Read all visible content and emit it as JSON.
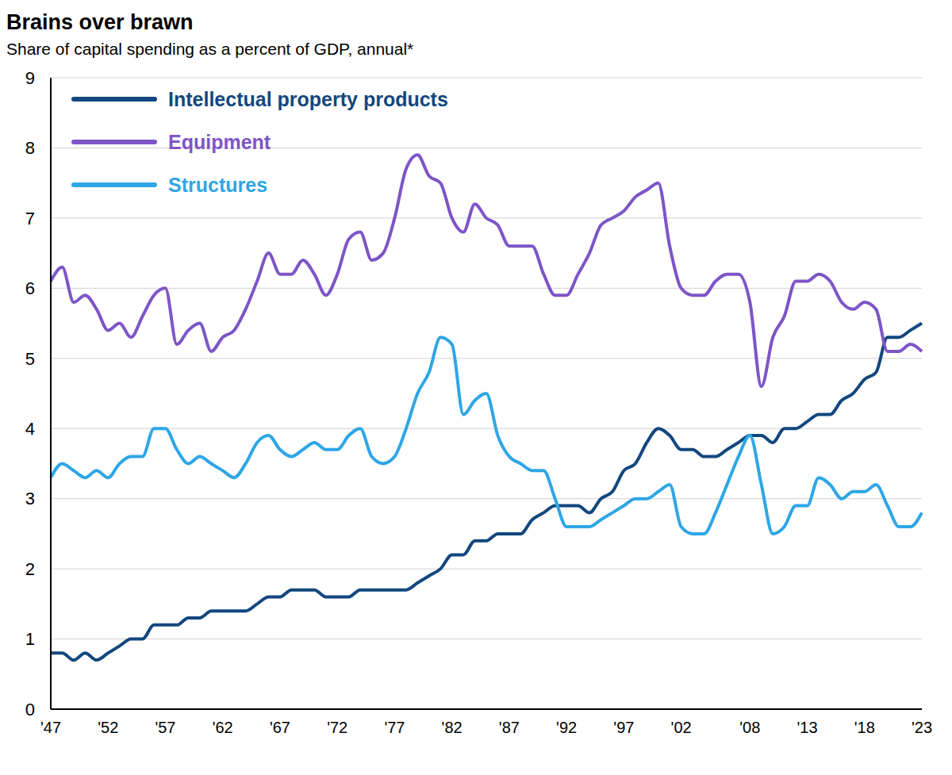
{
  "chart_data": {
    "type": "line",
    "title": "Brains over brawn",
    "subtitle": "Share of capital spending as a percent of GDP, annual*",
    "categories": [
      "'47",
      null,
      null,
      null,
      null,
      "'52",
      null,
      null,
      null,
      null,
      "'57",
      null,
      null,
      null,
      null,
      "'62",
      null,
      null,
      null,
      null,
      "'67",
      null,
      null,
      null,
      null,
      "'72",
      null,
      null,
      null,
      null,
      "'77",
      null,
      null,
      null,
      null,
      "'82",
      null,
      null,
      null,
      null,
      "'87",
      null,
      null,
      null,
      null,
      "'92",
      null,
      null,
      null,
      null,
      "'97",
      null,
      null,
      null,
      null,
      "'02",
      null,
      null,
      null,
      null,
      null,
      "'08",
      null,
      null,
      null,
      null,
      "'13",
      null,
      null,
      null,
      null,
      "'18",
      null,
      null,
      null,
      null,
      "'23"
    ],
    "series": [
      {
        "name": "Intellectual property products",
        "color": "#12477e",
        "values": [
          0.8,
          0.8,
          0.7,
          0.8,
          0.7,
          0.8,
          0.9,
          1.0,
          1.0,
          1.2,
          1.2,
          1.2,
          1.3,
          1.3,
          1.4,
          1.4,
          1.4,
          1.4,
          1.5,
          1.6,
          1.6,
          1.7,
          1.7,
          1.7,
          1.6,
          1.6,
          1.6,
          1.7,
          1.7,
          1.7,
          1.7,
          1.7,
          1.8,
          1.9,
          2.0,
          2.2,
          2.2,
          2.4,
          2.4,
          2.5,
          2.5,
          2.5,
          2.7,
          2.8,
          2.9,
          2.9,
          2.9,
          2.8,
          3.0,
          3.1,
          3.4,
          3.5,
          3.8,
          4.0,
          3.9,
          3.7,
          3.7,
          3.6,
          3.6,
          3.7,
          3.8,
          3.9,
          3.9,
          3.8,
          4.0,
          4.0,
          4.1,
          4.2,
          4.2,
          4.4,
          4.5,
          4.7,
          4.8,
          5.3,
          5.3,
          5.4,
          5.5
        ]
      },
      {
        "name": "Equipment",
        "color": "#7d55c7",
        "values": [
          6.1,
          6.3,
          5.8,
          5.9,
          5.7,
          5.4,
          5.5,
          5.3,
          5.6,
          5.9,
          6.0,
          5.2,
          5.4,
          5.5,
          5.1,
          5.3,
          5.4,
          5.7,
          6.1,
          6.5,
          6.2,
          6.2,
          6.4,
          6.2,
          5.9,
          6.2,
          6.7,
          6.8,
          6.4,
          6.5,
          7.0,
          7.7,
          7.9,
          7.6,
          7.5,
          7.0,
          6.8,
          7.2,
          7.0,
          6.9,
          6.6,
          6.6,
          6.6,
          6.2,
          5.9,
          5.9,
          6.2,
          6.5,
          6.9,
          7.0,
          7.1,
          7.3,
          7.4,
          7.5,
          6.6,
          6.0,
          5.9,
          5.9,
          6.1,
          6.2,
          6.2,
          5.8,
          4.6,
          5.3,
          5.6,
          6.1,
          6.1,
          6.2,
          6.1,
          5.8,
          5.7,
          5.8,
          5.7,
          5.1,
          5.1,
          5.2,
          5.1
        ]
      },
      {
        "name": "Structures",
        "color": "#2ea6e6",
        "values": [
          3.3,
          3.5,
          3.4,
          3.3,
          3.4,
          3.3,
          3.5,
          3.6,
          3.6,
          4.0,
          4.0,
          3.7,
          3.5,
          3.6,
          3.5,
          3.4,
          3.3,
          3.5,
          3.8,
          3.9,
          3.7,
          3.6,
          3.7,
          3.8,
          3.7,
          3.7,
          3.9,
          4.0,
          3.6,
          3.5,
          3.6,
          4.0,
          4.5,
          4.8,
          5.3,
          5.2,
          4.2,
          4.4,
          4.5,
          3.9,
          3.6,
          3.5,
          3.4,
          3.4,
          3.0,
          2.6,
          2.6,
          2.6,
          2.7,
          2.8,
          2.9,
          3.0,
          3.0,
          3.1,
          3.2,
          2.6,
          2.5,
          2.5,
          2.8,
          3.2,
          3.6,
          3.9,
          3.2,
          2.5,
          2.6,
          2.9,
          2.9,
          3.3,
          3.2,
          3.0,
          3.1,
          3.1,
          3.2,
          2.9,
          2.6,
          2.6,
          2.8
        ]
      }
    ],
    "ylim": [
      0,
      9
    ],
    "yticks": [
      0,
      1,
      2,
      3,
      4,
      5,
      6,
      7,
      8,
      9
    ],
    "grid": true,
    "legend": "upper left"
  }
}
